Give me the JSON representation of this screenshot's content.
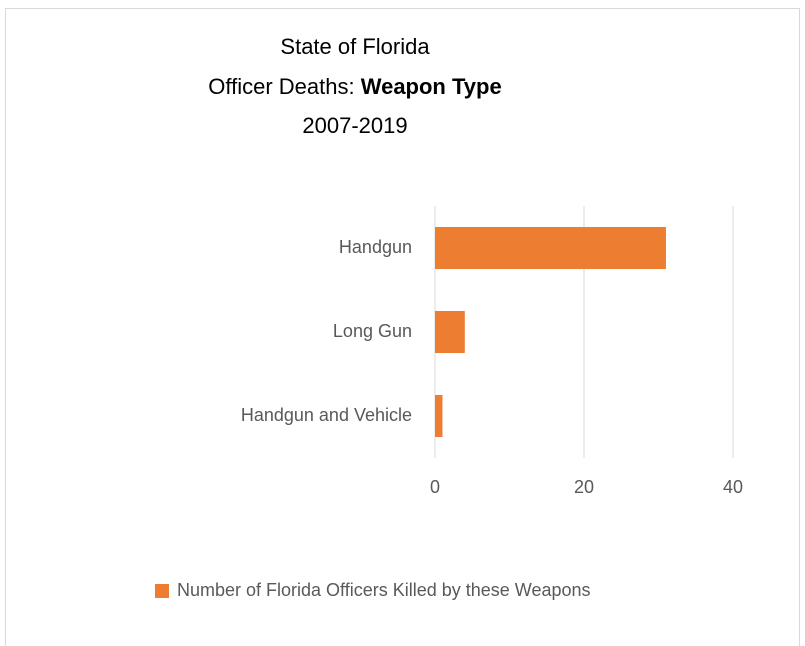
{
  "chart_data": {
    "type": "barh",
    "title": {
      "line1": "State of Florida",
      "line2": "Officer Deaths: ",
      "line2_bold": "Weapon Type",
      "line3": "2007-2019"
    },
    "categories": [
      "Handgun",
      "Long Gun",
      "Handgun and Vehicle"
    ],
    "series": [
      {
        "name": "Number of Florida Officers Killed by these Weapons",
        "color": "#ed7d31",
        "values": [
          31,
          4,
          1
        ]
      }
    ],
    "xlim": [
      0,
      40
    ],
    "xticks": [
      0,
      20,
      40
    ],
    "grid": true,
    "legend": "bottom"
  }
}
